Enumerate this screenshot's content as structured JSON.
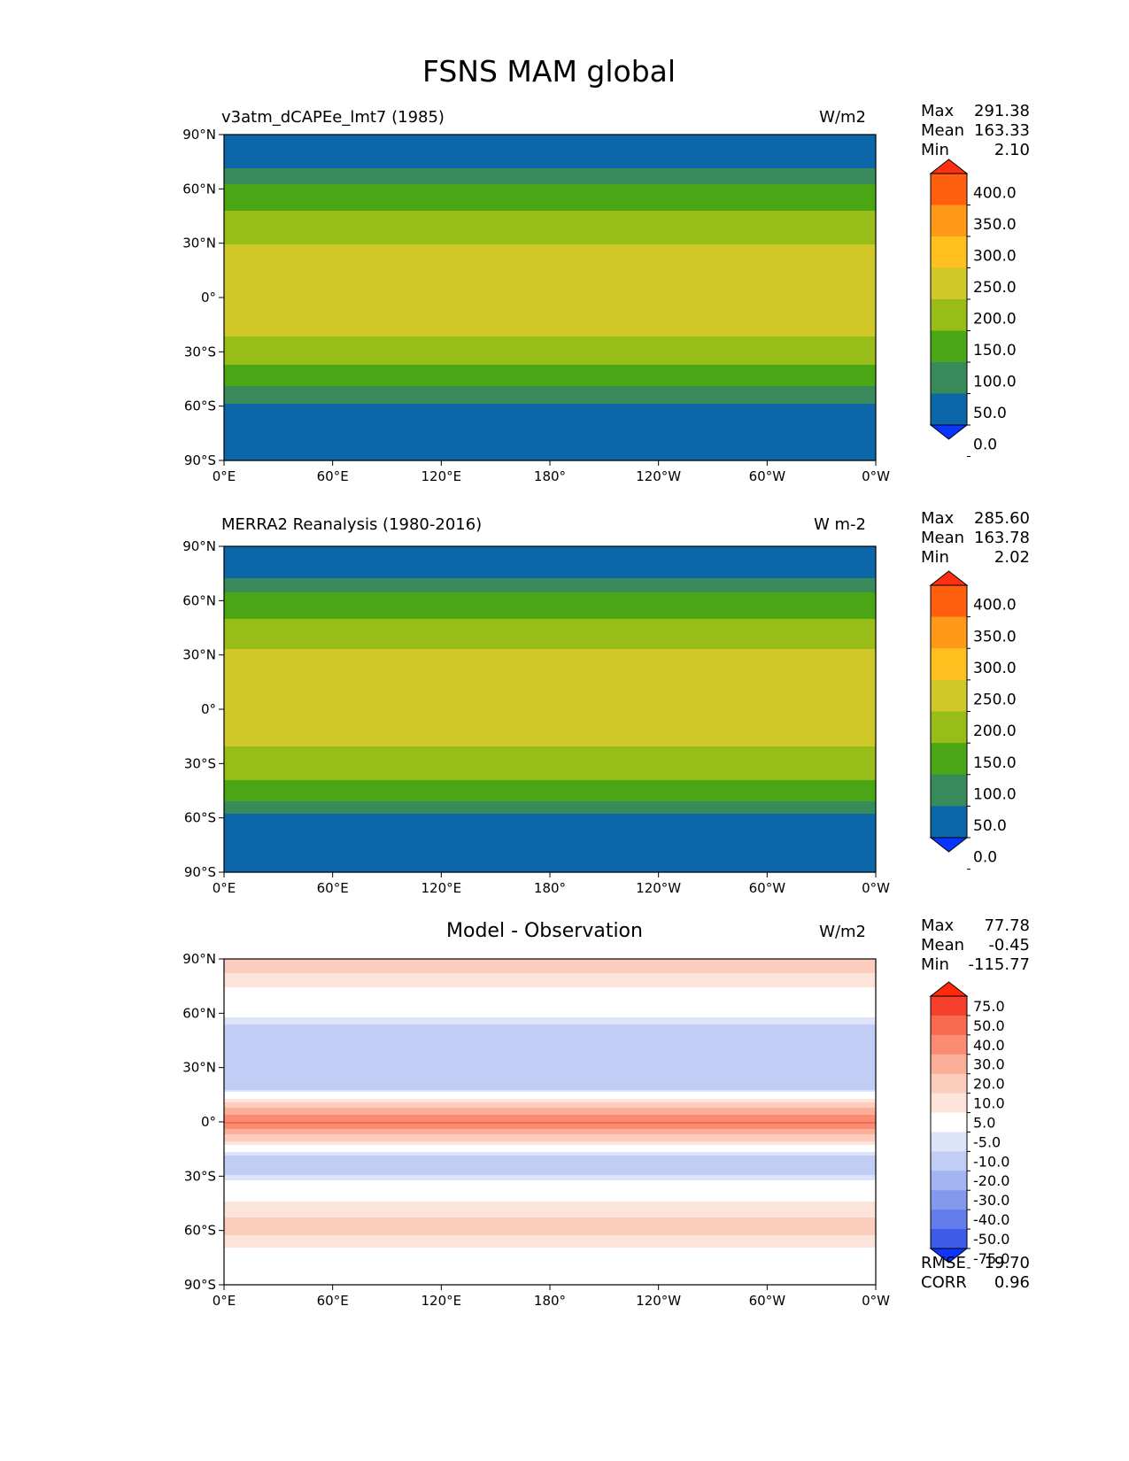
{
  "figure_title": "FSNS MAM global",
  "chart_data": [
    {
      "type": "heatmap",
      "title": "v3atm_dCAPEe_lmt7 (1985)",
      "units": "W/m2",
      "xticks": [
        "0°E",
        "60°E",
        "120°E",
        "180°",
        "120°W",
        "60°W",
        "0°W"
      ],
      "yticks": [
        "90°N",
        "60°N",
        "30°N",
        "0°",
        "30°S",
        "60°S",
        "90°S"
      ],
      "xlim": [
        0,
        360
      ],
      "ylim": [
        -90,
        90
      ],
      "stats": {
        "max_label": "Max",
        "max": "291.38",
        "mean_label": "Mean",
        "mean": "163.33",
        "min_label": "Min",
        "min": "2.10"
      },
      "colorbar": {
        "levels": [
          "400.0",
          "350.0",
          "300.0",
          "250.0",
          "200.0",
          "150.0",
          "100.0",
          "50.0",
          "0.0"
        ],
        "colors": [
          "#ff3010",
          "#ff6010",
          "#ff9a18",
          "#ffc020",
          "#cfc828",
          "#98bc18",
          "#4aa614",
          "#388a5a",
          "#0b67a8",
          "#0636ff"
        ]
      },
      "latitude_profile": [
        {
          "lat": 90,
          "value": 25
        },
        {
          "lat": 75,
          "value": 30
        },
        {
          "lat": 65,
          "value": 95
        },
        {
          "lat": 55,
          "value": 130
        },
        {
          "lat": 45,
          "value": 160
        },
        {
          "lat": 30,
          "value": 200
        },
        {
          "lat": 15,
          "value": 250
        },
        {
          "lat": 0,
          "value": 240
        },
        {
          "lat": -15,
          "value": 215
        },
        {
          "lat": -30,
          "value": 175
        },
        {
          "lat": -42,
          "value": 130
        },
        {
          "lat": -50,
          "value": 95
        },
        {
          "lat": -60,
          "value": 40
        },
        {
          "lat": -90,
          "value": 15
        }
      ]
    },
    {
      "type": "heatmap",
      "title": "MERRA2 Reanalysis (1980-2016)",
      "units": "W m-2",
      "xticks": [
        "0°E",
        "60°E",
        "120°E",
        "180°",
        "120°W",
        "60°W",
        "0°W"
      ],
      "yticks": [
        "90°N",
        "60°N",
        "30°N",
        "0°",
        "30°S",
        "60°S",
        "90°S"
      ],
      "xlim": [
        0,
        360
      ],
      "ylim": [
        -90,
        90
      ],
      "stats": {
        "max_label": "Max",
        "max": "285.60",
        "mean_label": "Mean",
        "mean": "163.78",
        "min_label": "Min",
        "min": "2.02"
      },
      "colorbar": {
        "levels": [
          "400.0",
          "350.0",
          "300.0",
          "250.0",
          "200.0",
          "150.0",
          "100.0",
          "50.0",
          "0.0"
        ],
        "colors": [
          "#ff3010",
          "#ff6010",
          "#ff9a18",
          "#ffc020",
          "#cfc828",
          "#98bc18",
          "#4aa614",
          "#388a5a",
          "#0b67a8",
          "#0636ff"
        ]
      },
      "latitude_profile": [
        {
          "lat": 90,
          "value": 25
        },
        {
          "lat": 75,
          "value": 35
        },
        {
          "lat": 65,
          "value": 100
        },
        {
          "lat": 55,
          "value": 135
        },
        {
          "lat": 45,
          "value": 170
        },
        {
          "lat": 30,
          "value": 210
        },
        {
          "lat": 15,
          "value": 245
        },
        {
          "lat": 0,
          "value": 225
        },
        {
          "lat": -15,
          "value": 210
        },
        {
          "lat": -30,
          "value": 180
        },
        {
          "lat": -42,
          "value": 140
        },
        {
          "lat": -50,
          "value": 100
        },
        {
          "lat": -58,
          "value": 45
        },
        {
          "lat": -90,
          "value": 15
        }
      ]
    },
    {
      "type": "heatmap",
      "title": "Model - Observation",
      "units": "W/m2",
      "xticks": [
        "0°E",
        "60°E",
        "120°E",
        "180°",
        "120°W",
        "60°W",
        "0°W"
      ],
      "yticks": [
        "90°N",
        "60°N",
        "30°N",
        "0°",
        "30°S",
        "60°S",
        "90°S"
      ],
      "xlim": [
        0,
        360
      ],
      "ylim": [
        -90,
        90
      ],
      "stats": {
        "max_label": "Max",
        "max": "77.78",
        "mean_label": "Mean",
        "mean": "-0.45",
        "min_label": "Min",
        "min": "-115.77"
      },
      "metrics": {
        "rmse_label": "RMSE",
        "rmse": "19.70",
        "corr_label": "CORR",
        "corr": "0.96"
      },
      "colorbar": {
        "levels": [
          "75.0",
          "50.0",
          "40.0",
          "30.0",
          "20.0",
          "10.0",
          "5.0",
          "-5.0",
          "-10.0",
          "-20.0",
          "-30.0",
          "-40.0",
          "-50.0",
          "-75.0"
        ],
        "colors": [
          "#ff2a0a",
          "#f4402c",
          "#f76a50",
          "#f98c72",
          "#fbae98",
          "#fcccbc",
          "#fde4da",
          "#ffffff",
          "#dde4fa",
          "#c2cdf6",
          "#a3b4f2",
          "#8499ee",
          "#627cea",
          "#3d5ce8",
          "#0c36ff"
        ]
      },
      "latitude_profile": [
        {
          "lat": 90,
          "value": 15
        },
        {
          "lat": 75,
          "value": 5
        },
        {
          "lat": 62,
          "value": 0
        },
        {
          "lat": 50,
          "value": -15
        },
        {
          "lat": 35,
          "value": -10
        },
        {
          "lat": 22,
          "value": -20
        },
        {
          "lat": 8,
          "value": 20
        },
        {
          "lat": 0,
          "value": 40
        },
        {
          "lat": -10,
          "value": 10
        },
        {
          "lat": -22,
          "value": -20
        },
        {
          "lat": -35,
          "value": 0
        },
        {
          "lat": -52,
          "value": 10
        },
        {
          "lat": -62,
          "value": 10
        },
        {
          "lat": -75,
          "value": 0
        },
        {
          "lat": -90,
          "value": 0
        }
      ]
    }
  ]
}
